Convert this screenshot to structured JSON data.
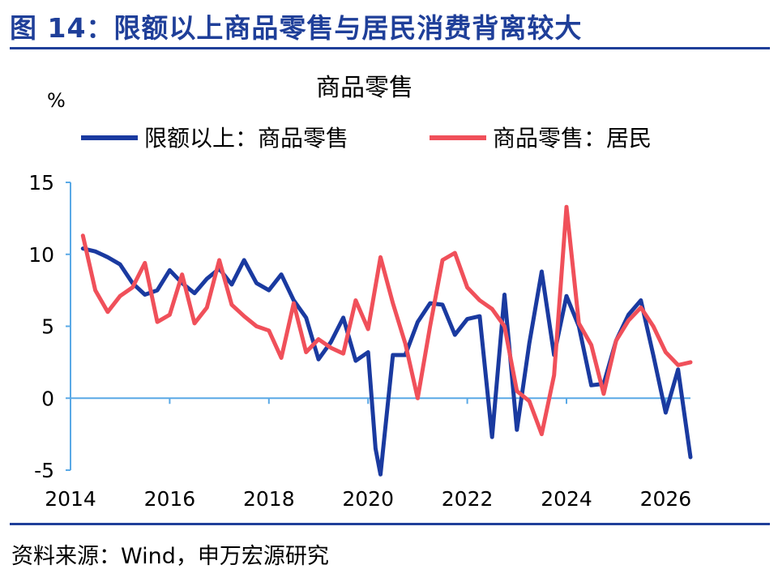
{
  "figure": {
    "title": "图 14：限额以上商品零售与居民消费背离较大",
    "source": "资料来源：Wind，申万宏源研究"
  },
  "colors": {
    "accent": "#1f3f99",
    "series_blue": "#1a3aa0",
    "series_red": "#f0505a",
    "axis": "#5aa9e6"
  },
  "chart_data": {
    "type": "line",
    "title": "商品零售",
    "ylabel": "%",
    "ylim": [
      -5,
      15
    ],
    "xlim": [
      2014,
      2026.5
    ],
    "yticks": [
      -5,
      0,
      5,
      10,
      15
    ],
    "xticks": [
      2014,
      2016,
      2018,
      2020,
      2022,
      2024,
      2026
    ],
    "grid": false,
    "legend_position": "top",
    "series": [
      {
        "name": "限额以上：商品零售",
        "color": "#1a3aa0",
        "x": [
          2014.25,
          2014.5,
          2014.75,
          2015,
          2015.25,
          2015.5,
          2015.75,
          2016,
          2016.25,
          2016.5,
          2016.75,
          2017,
          2017.25,
          2017.5,
          2017.75,
          2018,
          2018.25,
          2018.5,
          2018.75,
          2019,
          2019.25,
          2019.5,
          2019.75,
          2020,
          2020.15,
          2020.25,
          2020.5,
          2020.75,
          2021,
          2021.25,
          2021.5,
          2021.75,
          2022,
          2022.25,
          2022.5,
          2022.75,
          2023,
          2023.25,
          2023.5,
          2023.75,
          2024,
          2024.25,
          2024.5,
          2024.75,
          2025,
          2025.25,
          2025.5,
          2025.75,
          2026,
          2026.25,
          2026.5
        ],
        "y": [
          10.4,
          10.2,
          9.8,
          9.3,
          8.0,
          7.2,
          7.5,
          8.9,
          8.0,
          7.3,
          8.3,
          9.0,
          7.9,
          9.6,
          8.0,
          7.5,
          8.6,
          6.8,
          5.6,
          2.7,
          3.9,
          5.6,
          2.6,
          3.2,
          -3.5,
          -5.3,
          3.0,
          3.0,
          5.3,
          6.6,
          6.5,
          4.4,
          5.5,
          5.7,
          -2.7,
          7.2,
          -2.2,
          3.8,
          8.8,
          3.0,
          7.1,
          5.0,
          0.9,
          1.0,
          4.0,
          5.8,
          6.8,
          3.0,
          -1.0,
          2.0,
          -4.1
        ]
      },
      {
        "name": "商品零售：居民",
        "color": "#f0505a",
        "x": [
          2014.25,
          2014.5,
          2014.75,
          2015,
          2015.25,
          2015.5,
          2015.75,
          2016,
          2016.25,
          2016.5,
          2016.75,
          2017,
          2017.25,
          2017.5,
          2017.75,
          2018,
          2018.25,
          2018.5,
          2018.75,
          2019,
          2019.25,
          2019.5,
          2019.75,
          2020,
          2020.25,
          2020.5,
          2020.75,
          2021,
          2021.25,
          2021.5,
          2021.75,
          2022,
          2022.25,
          2022.5,
          2022.75,
          2023,
          2023.25,
          2023.5,
          2023.75,
          2024,
          2024.25,
          2024.5,
          2024.75,
          2025,
          2025.25,
          2025.5,
          2025.75,
          2026,
          2026.25,
          2026.5
        ],
        "y": [
          11.3,
          7.5,
          6.0,
          7.1,
          7.7,
          9.4,
          5.3,
          5.8,
          8.6,
          5.2,
          6.3,
          9.6,
          6.5,
          5.7,
          5.0,
          4.7,
          2.8,
          6.6,
          3.2,
          4.1,
          3.5,
          3.1,
          6.8,
          4.8,
          9.8,
          6.6,
          3.8,
          0.0,
          5.0,
          9.6,
          10.1,
          7.7,
          6.8,
          6.2,
          5.0,
          0.5,
          -0.2,
          -2.5,
          1.6,
          13.3,
          5.2,
          3.7,
          0.3,
          4.0,
          5.4,
          6.3,
          5.0,
          3.2,
          2.3,
          2.5
        ]
      }
    ]
  }
}
